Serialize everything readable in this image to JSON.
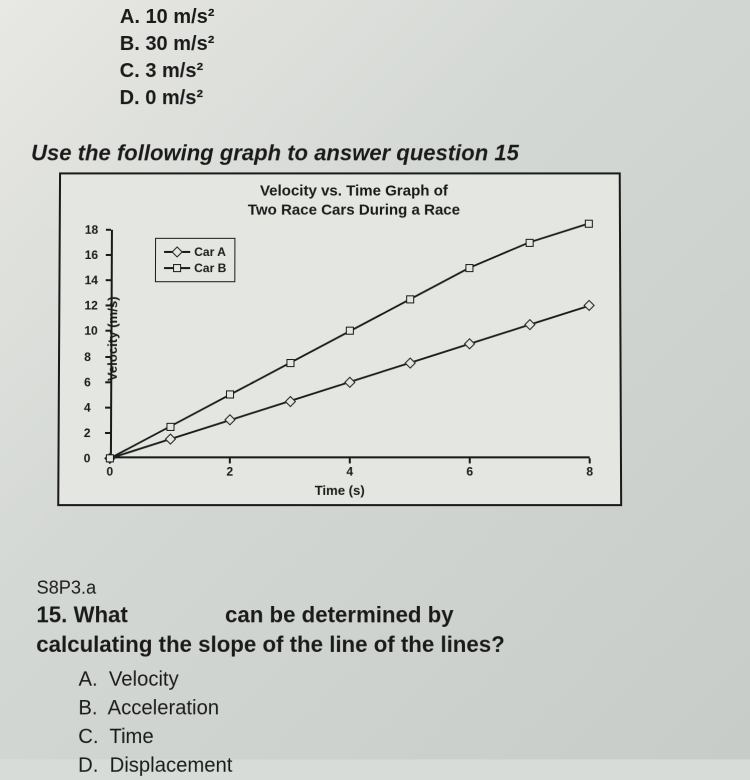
{
  "top_question": {
    "choices": [
      {
        "letter": "A.",
        "text": "10 m/s²"
      },
      {
        "letter": "B.",
        "text": "30 m/s²"
      },
      {
        "letter": "C.",
        "text": "3 m/s²"
      },
      {
        "letter": "D.",
        "text": "0 m/s²"
      }
    ]
  },
  "instruction": "Use the following graph to answer question 15",
  "chart": {
    "type": "line",
    "title_line1": "Velocity vs. Time Graph of",
    "title_line2": "Two Race Cars During a Race",
    "xlabel": "Time (s)",
    "ylabel": "Velocity (m/s)",
    "xlim": [
      0,
      8
    ],
    "ylim": [
      0,
      18
    ],
    "xticks": [
      0,
      2,
      4,
      6,
      8
    ],
    "yticks": [
      0,
      2,
      4,
      6,
      8,
      10,
      12,
      14,
      16,
      18
    ],
    "background_color": "#e4e6e2",
    "axis_color": "#1a1a1a",
    "line_color": "#1a1a1a",
    "line_width": 1.8,
    "marker_size": 8,
    "series": [
      {
        "name": "Car A",
        "marker": "diamond",
        "x": [
          0,
          1,
          2,
          3,
          4,
          5,
          6,
          7,
          8
        ],
        "y": [
          0,
          1.5,
          3,
          4.5,
          6,
          7.5,
          9,
          10.5,
          12
        ]
      },
      {
        "name": "Car B",
        "marker": "square",
        "x": [
          0,
          1,
          2,
          3,
          4,
          5,
          6,
          7,
          8
        ],
        "y": [
          0,
          2.5,
          5,
          7.5,
          10,
          12.5,
          15,
          17,
          18.5
        ]
      }
    ]
  },
  "q15": {
    "standard": "S8P3.a",
    "number": "15.",
    "stem_part1": "What",
    "stem_part2": "can be determined by",
    "stem_line2": "calculating the slope of the line of the lines?",
    "choices": [
      {
        "letter": "A.",
        "text": "Velocity"
      },
      {
        "letter": "B.",
        "text": "Acceleration"
      },
      {
        "letter": "C.",
        "text": "Time"
      },
      {
        "letter": "D.",
        "text": "Displacement"
      }
    ]
  }
}
